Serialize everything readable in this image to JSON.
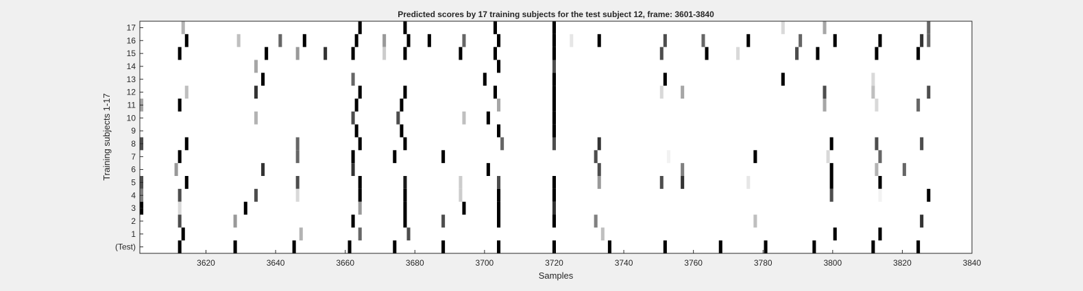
{
  "chart_data": {
    "type": "heatmap",
    "title": "Predicted scores by 17 training subjects for the test subject 12, frame: 3601-3840",
    "xlabel": "Samples",
    "ylabel": "Training subjects 1-17",
    "xlim": [
      3601,
      3840
    ],
    "x_ticks": [
      3620,
      3640,
      3660,
      3680,
      3700,
      3720,
      3740,
      3760,
      3780,
      3800,
      3820,
      3840
    ],
    "y_tick_labels": [
      "17",
      "16",
      "15",
      "14",
      "13",
      "12",
      "11",
      "10",
      "9",
      "8",
      "7",
      "6",
      "5",
      "4",
      "3",
      "2",
      "1",
      "(Test)"
    ],
    "colormap": "gray (1 = black, 0 = white)",
    "background": "#ffffff",
    "rows": [
      {
        "label": "17",
        "marks": [
          [
            3613,
            0.3
          ],
          [
            3664,
            1
          ],
          [
            3677,
            1
          ],
          [
            3703,
            1
          ],
          [
            3720,
            1
          ],
          [
            3786,
            0.15
          ],
          [
            3798,
            0.35
          ],
          [
            3828,
            0.6
          ]
        ]
      },
      {
        "label": "16",
        "marks": [
          [
            3614,
            1
          ],
          [
            3629,
            0.25
          ],
          [
            3641,
            0.6
          ],
          [
            3648,
            1
          ],
          [
            3663,
            1
          ],
          [
            3671,
            0.4
          ],
          [
            3678,
            1
          ],
          [
            3684,
            1
          ],
          [
            3694,
            0.6
          ],
          [
            3704,
            1
          ],
          [
            3720,
            1
          ],
          [
            3725,
            0.1
          ],
          [
            3733,
            1
          ],
          [
            3752,
            0.7
          ],
          [
            3763,
            0.6
          ],
          [
            3776,
            1
          ],
          [
            3791,
            0.6
          ],
          [
            3801,
            1
          ],
          [
            3814,
            1
          ],
          [
            3826,
            0.8
          ],
          [
            3828,
            0.6
          ]
        ]
      },
      {
        "label": "15",
        "marks": [
          [
            3612,
            1
          ],
          [
            3637,
            1
          ],
          [
            3646,
            0.4
          ],
          [
            3654,
            0.8
          ],
          [
            3662,
            1
          ],
          [
            3671,
            0.2
          ],
          [
            3677,
            1
          ],
          [
            3693,
            1
          ],
          [
            3703,
            1
          ],
          [
            3720,
            1
          ],
          [
            3751,
            0.7
          ],
          [
            3764,
            1
          ],
          [
            3773,
            0.15
          ],
          [
            3790,
            0.7
          ],
          [
            3796,
            1
          ],
          [
            3813,
            1
          ],
          [
            3825,
            1
          ]
        ]
      },
      {
        "label": "14",
        "marks": [
          [
            3634,
            0.35
          ],
          [
            3704,
            1
          ],
          [
            3720,
            0.7
          ]
        ]
      },
      {
        "label": "13",
        "marks": [
          [
            3636,
            1
          ],
          [
            3662,
            0.6
          ],
          [
            3700,
            1
          ],
          [
            3720,
            1
          ],
          [
            3752,
            1
          ],
          [
            3786,
            1
          ],
          [
            3812,
            0.15
          ]
        ]
      },
      {
        "label": "12",
        "marks": [
          [
            3614,
            0.25
          ],
          [
            3634,
            0.8
          ],
          [
            3664,
            1
          ],
          [
            3677,
            1
          ],
          [
            3703,
            1
          ],
          [
            3720,
            1
          ],
          [
            3751,
            0.15
          ],
          [
            3757,
            0.35
          ],
          [
            3798,
            0.7
          ],
          [
            3812,
            0.25
          ],
          [
            3828,
            0.7
          ]
        ]
      },
      {
        "label": "11",
        "marks": [
          [
            3601,
            0.35
          ],
          [
            3612,
            1
          ],
          [
            3663,
            1
          ],
          [
            3676,
            1
          ],
          [
            3704,
            0.35
          ],
          [
            3720,
            1
          ],
          [
            3798,
            0.35
          ],
          [
            3813,
            0.15
          ],
          [
            3825,
            0.6
          ]
        ]
      },
      {
        "label": "10",
        "marks": [
          [
            3634,
            0.3
          ],
          [
            3662,
            0.7
          ],
          [
            3675,
            0.7
          ],
          [
            3694,
            0.25
          ],
          [
            3701,
            1
          ],
          [
            3720,
            1
          ]
        ]
      },
      {
        "label": "9",
        "marks": [
          [
            3663,
            1
          ],
          [
            3676,
            1
          ],
          [
            3704,
            1
          ],
          [
            3720,
            1
          ]
        ]
      },
      {
        "label": "8",
        "marks": [
          [
            3601,
            0.7
          ],
          [
            3614,
            1
          ],
          [
            3646,
            0.6
          ],
          [
            3664,
            1
          ],
          [
            3677,
            1
          ],
          [
            3705,
            0.6
          ],
          [
            3720,
            0.7
          ],
          [
            3733,
            0.8
          ],
          [
            3800,
            1
          ],
          [
            3813,
            0.7
          ],
          [
            3826,
            0.7
          ]
        ]
      },
      {
        "label": "7",
        "marks": [
          [
            3612,
            1
          ],
          [
            3646,
            0.6
          ],
          [
            3662,
            1
          ],
          [
            3674,
            1
          ],
          [
            3688,
            1
          ],
          [
            3732,
            0.7
          ],
          [
            3753,
            0.05
          ],
          [
            3778,
            1
          ],
          [
            3799,
            0.15
          ],
          [
            3814,
            0.6
          ]
        ]
      },
      {
        "label": "6",
        "marks": [
          [
            3611,
            0.4
          ],
          [
            3636,
            0.8
          ],
          [
            3662,
            0.8
          ],
          [
            3701,
            1
          ],
          [
            3733,
            0.7
          ],
          [
            3757,
            0.5
          ],
          [
            3800,
            1
          ],
          [
            3813,
            0.3
          ],
          [
            3821,
            0.6
          ]
        ]
      },
      {
        "label": "5",
        "marks": [
          [
            3601,
            0.7
          ],
          [
            3614,
            1
          ],
          [
            3646,
            0.7
          ],
          [
            3664,
            1
          ],
          [
            3677,
            0.9
          ],
          [
            3693,
            0.2
          ],
          [
            3704,
            0.7
          ],
          [
            3720,
            1
          ],
          [
            3733,
            0.4
          ],
          [
            3751,
            0.7
          ],
          [
            3757,
            0.8
          ],
          [
            3776,
            0.1
          ],
          [
            3800,
            1
          ],
          [
            3814,
            1
          ]
        ]
      },
      {
        "label": "4",
        "marks": [
          [
            3601,
            0.5
          ],
          [
            3612,
            0.7
          ],
          [
            3634,
            0.7
          ],
          [
            3646,
            0.15
          ],
          [
            3664,
            1
          ],
          [
            3677,
            1
          ],
          [
            3693,
            0.2
          ],
          [
            3704,
            1
          ],
          [
            3720,
            1
          ],
          [
            3800,
            0.7
          ],
          [
            3814,
            0.05
          ],
          [
            3828,
            1
          ]
        ]
      },
      {
        "label": "3",
        "marks": [
          [
            3600,
            1
          ],
          [
            3612,
            0.15
          ],
          [
            3631,
            1
          ],
          [
            3664,
            0.4
          ],
          [
            3677,
            1
          ],
          [
            3694,
            1
          ],
          [
            3704,
            1
          ],
          [
            3720,
            0.8
          ]
        ]
      },
      {
        "label": "2",
        "marks": [
          [
            3612,
            0.7
          ],
          [
            3628,
            0.4
          ],
          [
            3662,
            1
          ],
          [
            3677,
            1
          ],
          [
            3688,
            0.7
          ],
          [
            3704,
            1
          ],
          [
            3720,
            1
          ],
          [
            3732,
            0.5
          ],
          [
            3778,
            0.25
          ],
          [
            3826,
            0.8
          ]
        ]
      },
      {
        "label": "1",
        "marks": [
          [
            3613,
            1
          ],
          [
            3647,
            0.3
          ],
          [
            3664,
            0.6
          ],
          [
            3678,
            0.7
          ],
          [
            3734,
            0.25
          ],
          [
            3801,
            1
          ],
          [
            3814,
            1
          ]
        ]
      },
      {
        "label": "(Test)",
        "marks": [
          [
            3612,
            1
          ],
          [
            3628,
            1
          ],
          [
            3645,
            1
          ],
          [
            3661,
            1
          ],
          [
            3674,
            1
          ],
          [
            3688,
            1
          ],
          [
            3704,
            1
          ],
          [
            3720,
            1
          ],
          [
            3736,
            1
          ],
          [
            3752,
            1
          ],
          [
            3768,
            1
          ],
          [
            3781,
            1
          ],
          [
            3795,
            1
          ],
          [
            3812,
            1
          ],
          [
            3825,
            1
          ]
        ]
      }
    ]
  }
}
